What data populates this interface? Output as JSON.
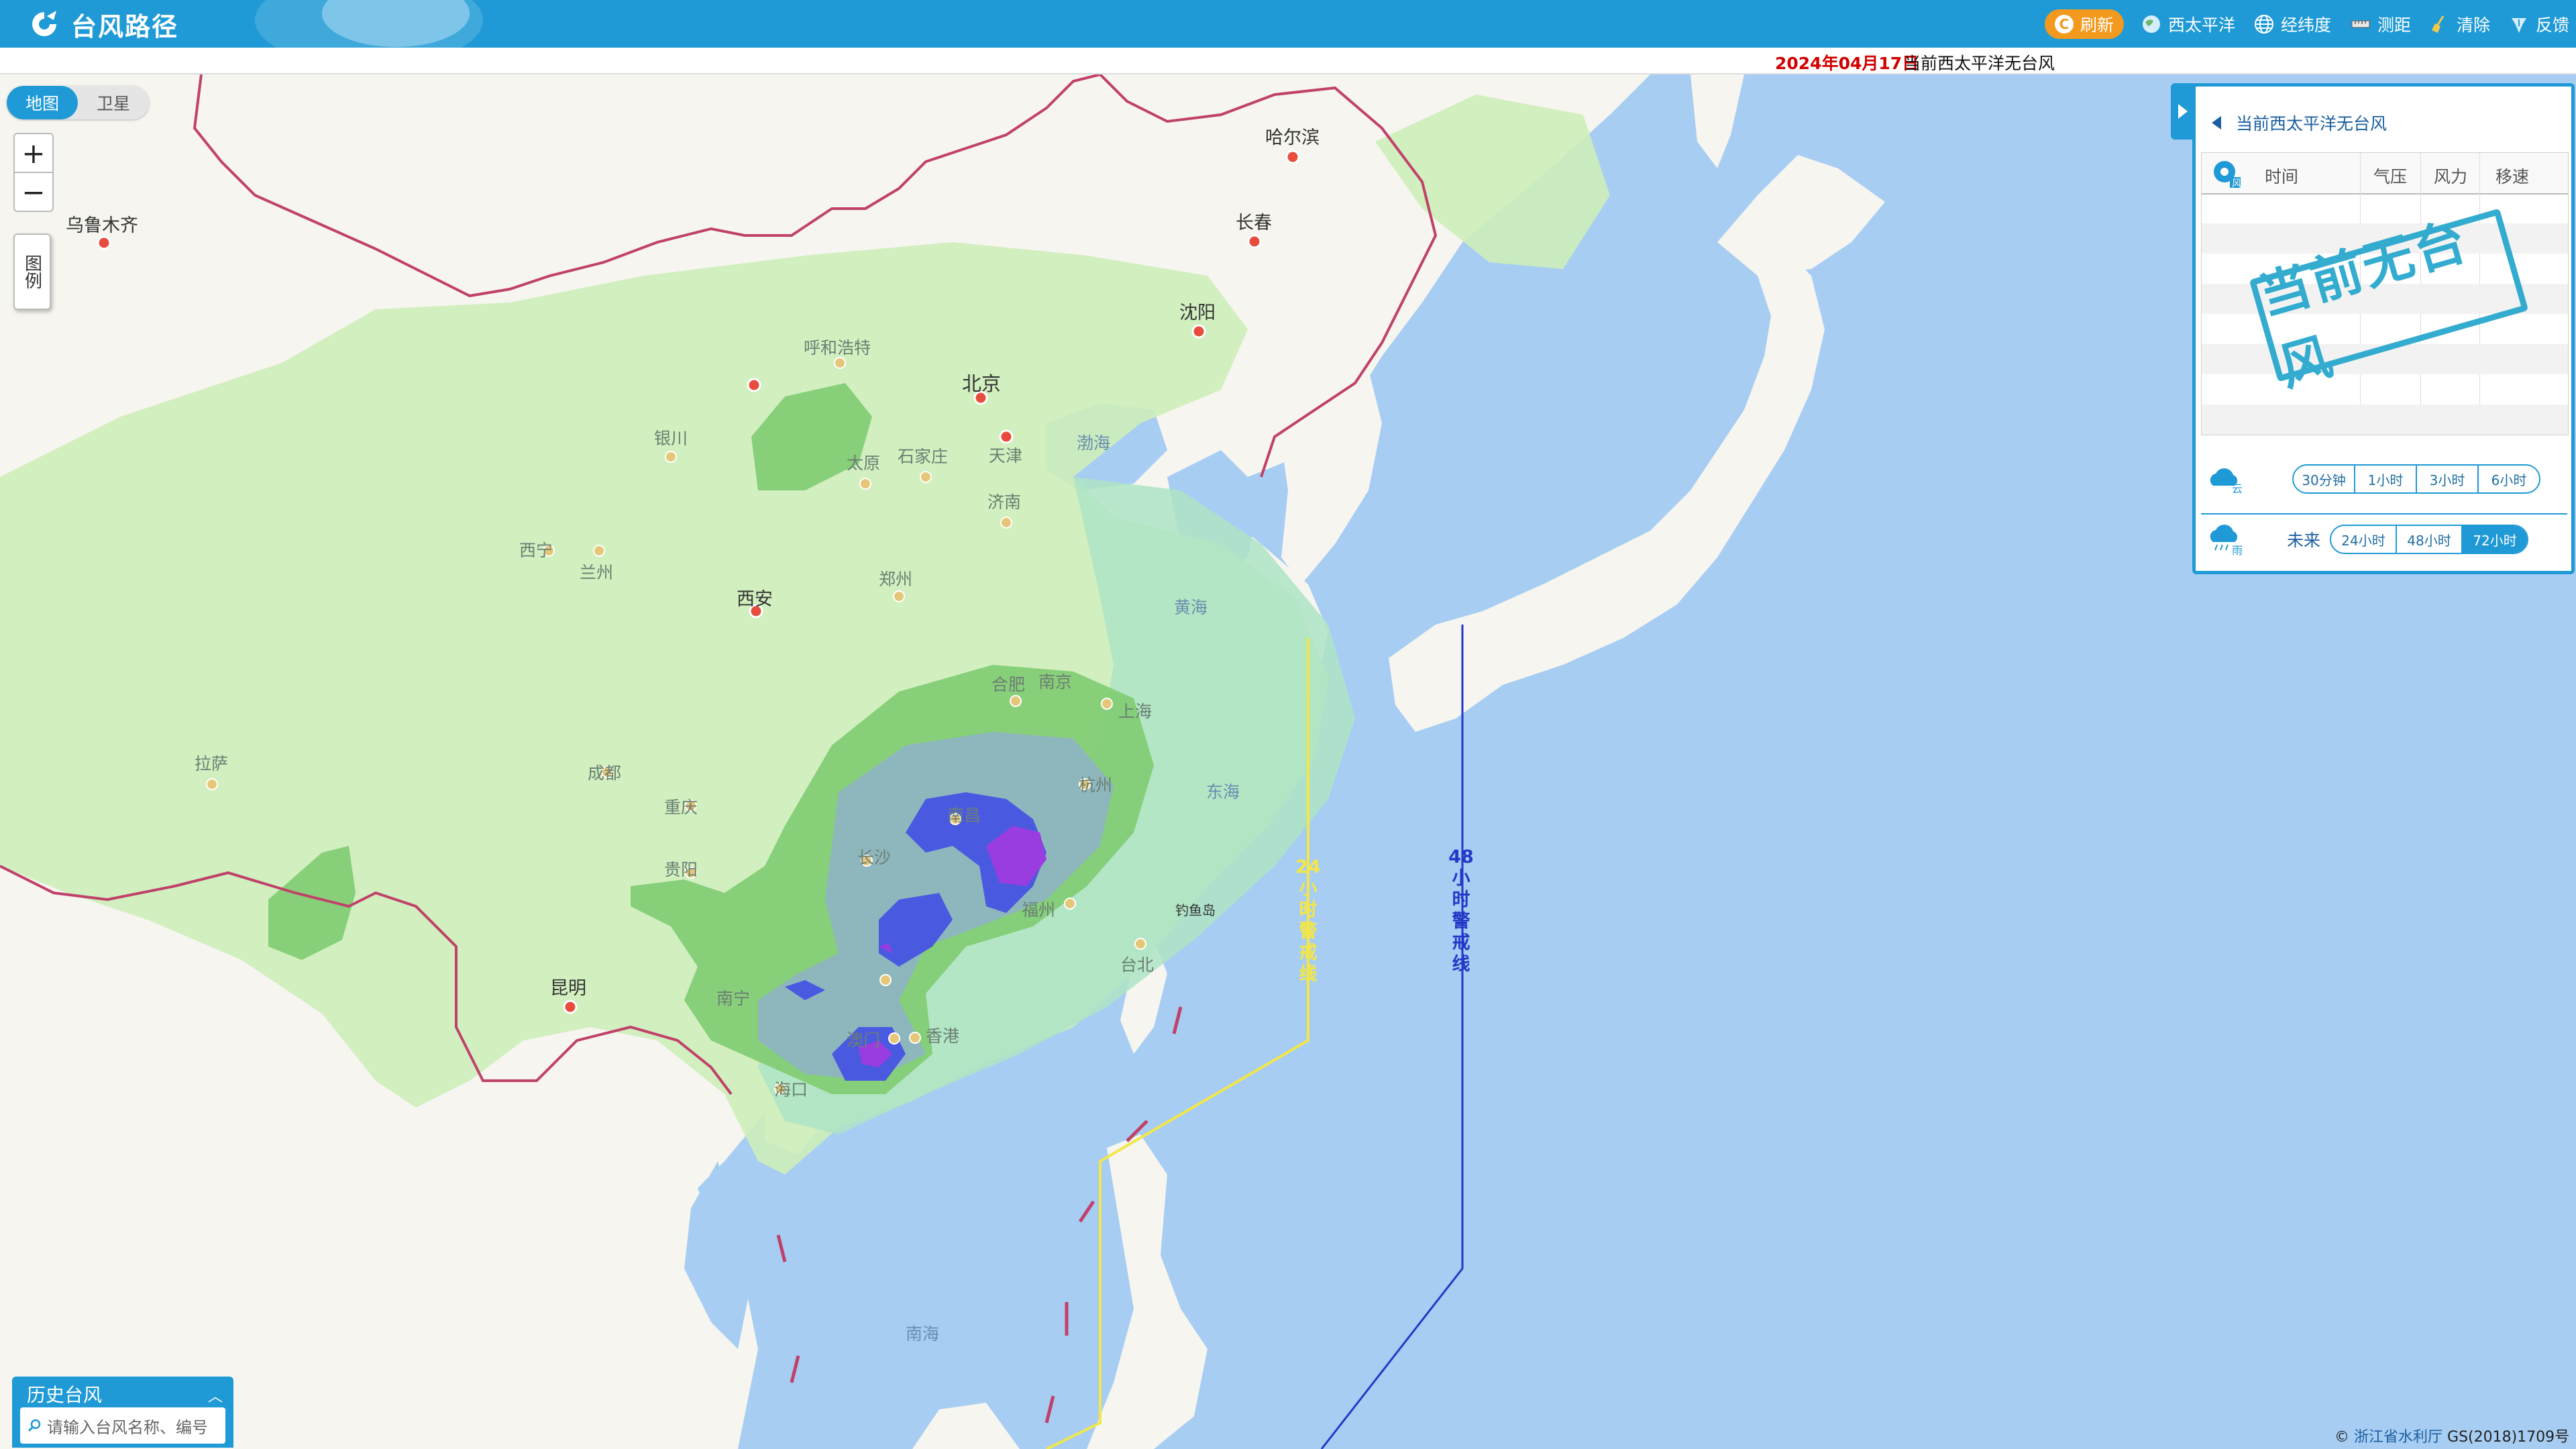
{
  "app": {
    "title": "台风路径"
  },
  "toolbar": {
    "refresh": "刷新",
    "items": [
      "西太平洋",
      "经纬度",
      "测距",
      "清除",
      "反馈"
    ]
  },
  "info": {
    "date": "2024年04月17日",
    "status": "当前西太平洋无台风"
  },
  "map_type": {
    "map": "地图",
    "satellite": "卫星",
    "selected": "地图"
  },
  "zoom": {
    "in": "+",
    "out": "−"
  },
  "legend_button": "图例",
  "panel": {
    "title": "当前西太平洋无台风",
    "table_headers": [
      "时间",
      "气压",
      "风力",
      "移速"
    ],
    "stamp": "当前无台风",
    "cloud_label": "云",
    "cloud_options": [
      "30分钟",
      "1小时",
      "3小时",
      "6小时"
    ],
    "rain_label": "雨",
    "future_label": "未来",
    "rain_options": [
      "24小时",
      "48小时",
      "72小时"
    ],
    "rain_selected": "72小时"
  },
  "map_labels": {
    "cities": [
      "哈尔滨",
      "长春",
      "沈阳",
      "乌鲁木齐",
      "呼和浩特",
      "北京",
      "天津",
      "银川",
      "太原",
      "石家庄",
      "济南",
      "西宁",
      "兰州",
      "西安",
      "郑州",
      "合肥",
      "南京",
      "上海",
      "杭州",
      "拉萨",
      "成都",
      "重庆",
      "贵阳",
      "长沙",
      "南昌",
      "福州",
      "台北",
      "昆明",
      "南宁",
      "澳门",
      "香港",
      "海口"
    ],
    "seas": [
      "渤海",
      "黄海",
      "东海",
      "南海"
    ],
    "islands": [
      "钓鱼岛"
    ],
    "warning_24": "24小时警戒线",
    "warning_48": "48小时警戒线"
  },
  "history": {
    "title": "历史台风",
    "placeholder": "请输入台风名称、编号"
  },
  "credit": {
    "org": "浙江省水利厅",
    "license": "GS(2018)1709号"
  },
  "colors": {
    "brand": "#1f9ad6",
    "warning_24": "#f2e64a",
    "warning_48": "#2438c8",
    "date": "#d10000"
  }
}
